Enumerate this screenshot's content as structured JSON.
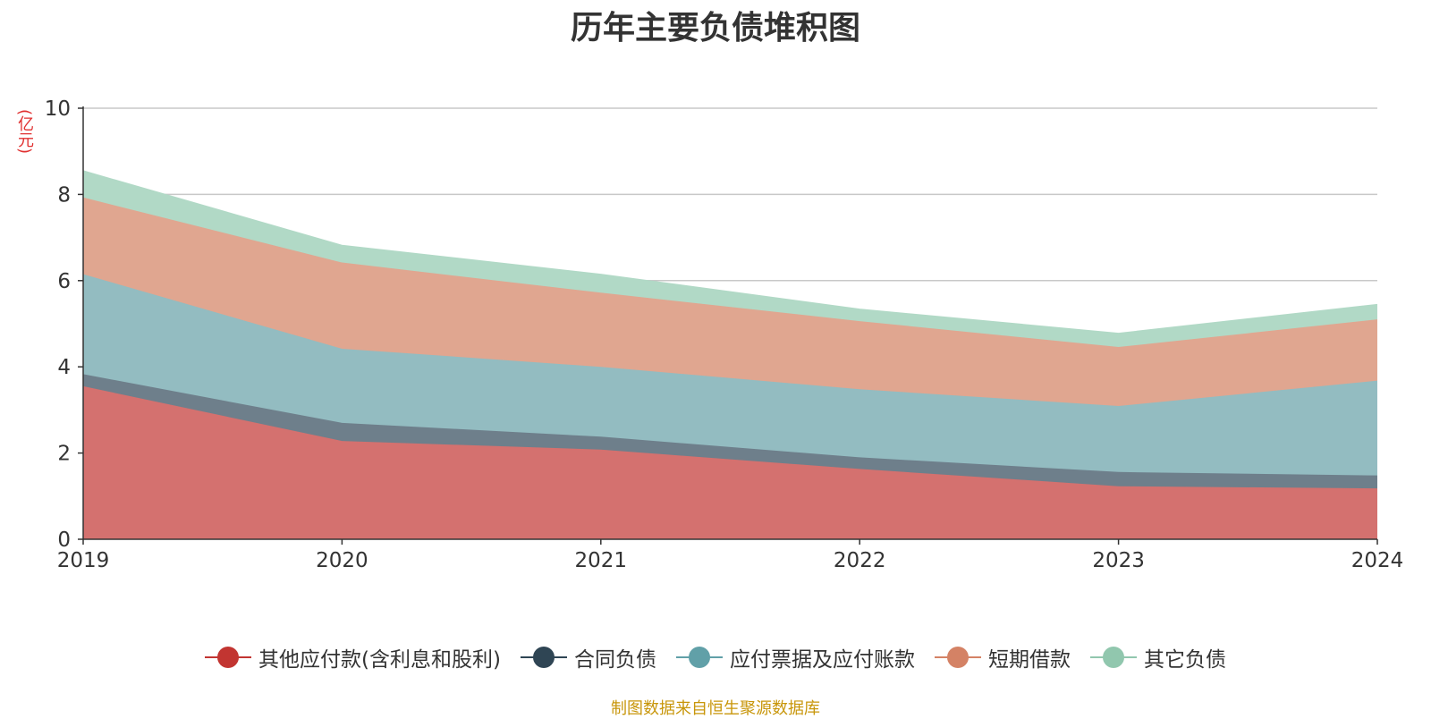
{
  "title": "历年主要负债堆积图",
  "unit": "(亿元)",
  "footer": "制图数据来自恒生聚源数据库",
  "chart_data": {
    "type": "area",
    "stacked": true,
    "title": "历年主要负债堆积图",
    "ylabel": "(亿元)",
    "xlabel": "",
    "ylim": [
      0,
      10
    ],
    "yticks": [
      0,
      2,
      4,
      6,
      8,
      10
    ],
    "grid": true,
    "legend_position": "bottom",
    "categories": [
      "2019",
      "2020",
      "2021",
      "2022",
      "2023",
      "2024"
    ],
    "series": [
      {
        "name": "其他应付款(含利息和股利)",
        "color": "#c23531",
        "fill": "#d4716f",
        "values": [
          3.55,
          2.28,
          2.08,
          1.63,
          1.23,
          1.18
        ]
      },
      {
        "name": "合同负债",
        "color": "#2f4554",
        "fill": "#6e7f8b",
        "values": [
          0.28,
          0.42,
          0.3,
          0.27,
          0.33,
          0.3
        ]
      },
      {
        "name": "应付票据及应付账款",
        "color": "#61a0a8",
        "fill": "#93bcc1",
        "values": [
          2.32,
          1.72,
          1.62,
          1.58,
          1.53,
          2.2
        ]
      },
      {
        "name": "短期借款",
        "color": "#d48265",
        "fill": "#e0a690",
        "values": [
          1.78,
          2.0,
          1.72,
          1.58,
          1.37,
          1.42
        ]
      },
      {
        "name": "其它负债",
        "color": "#91c7ae",
        "fill": "#b1d9c6",
        "values": [
          0.62,
          0.4,
          0.43,
          0.28,
          0.32,
          0.35
        ]
      }
    ]
  }
}
